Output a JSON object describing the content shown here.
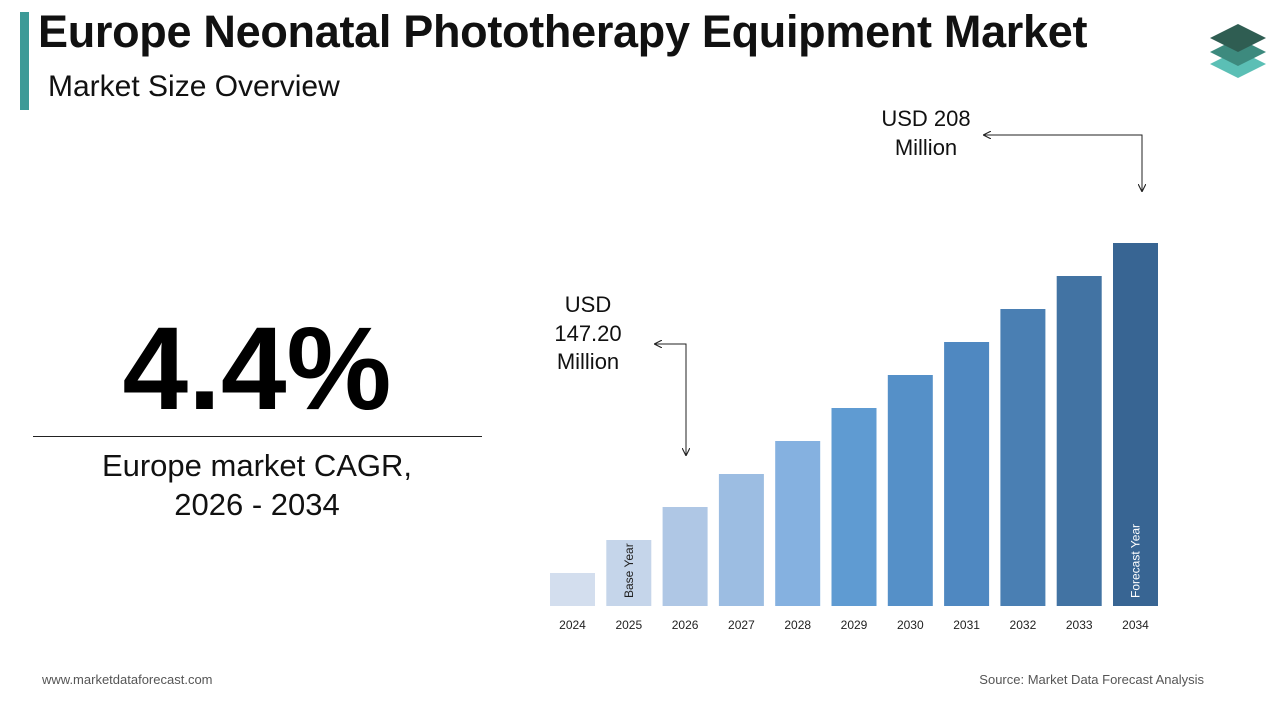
{
  "header": {
    "title": "Europe Neonatal Phototherapy Equipment Market",
    "subtitle": "Market Size Overview"
  },
  "kpi": {
    "cagr_value": "4.4%",
    "cagr_label_line1": "Europe market CAGR,",
    "cagr_label_line2": "2026 - 2034"
  },
  "annotations": {
    "start": {
      "line1": "USD",
      "line2": "147.20",
      "line3": "Million"
    },
    "end": {
      "line1": "USD 208",
      "line2": "Million"
    }
  },
  "footer": {
    "website": "www.marketdataforecast.com",
    "source": "Source: Market Data Forecast Analysis"
  },
  "colors": {
    "accent": "#3d9a97",
    "bars": [
      "#d3deee",
      "#c5d5ea",
      "#afc7e5",
      "#9cbde2",
      "#85b1e0",
      "#5f9bd2",
      "#5590c8",
      "#4f88c1",
      "#4a7fb3",
      "#4273a3",
      "#386593"
    ]
  },
  "chart_data": {
    "type": "bar",
    "categories": [
      "2024",
      "2025",
      "2026",
      "2027",
      "2028",
      "2029",
      "2030",
      "2031",
      "2032",
      "2033",
      "2034"
    ],
    "values": [
      1,
      2,
      3,
      4,
      5,
      6,
      7,
      8,
      9,
      10,
      11
    ],
    "values_note": "Illustrative relative bar heights; only the 2026 and 2034 values are labeled",
    "labeled_values": {
      "2026": 147.2,
      "2034": 208
    },
    "unit": "USD Million",
    "bar_labels": {
      "2025": "Base Year",
      "2034": "Forecast Year"
    },
    "xlabel": "",
    "ylabel": "",
    "grid": false,
    "legend": "none"
  }
}
